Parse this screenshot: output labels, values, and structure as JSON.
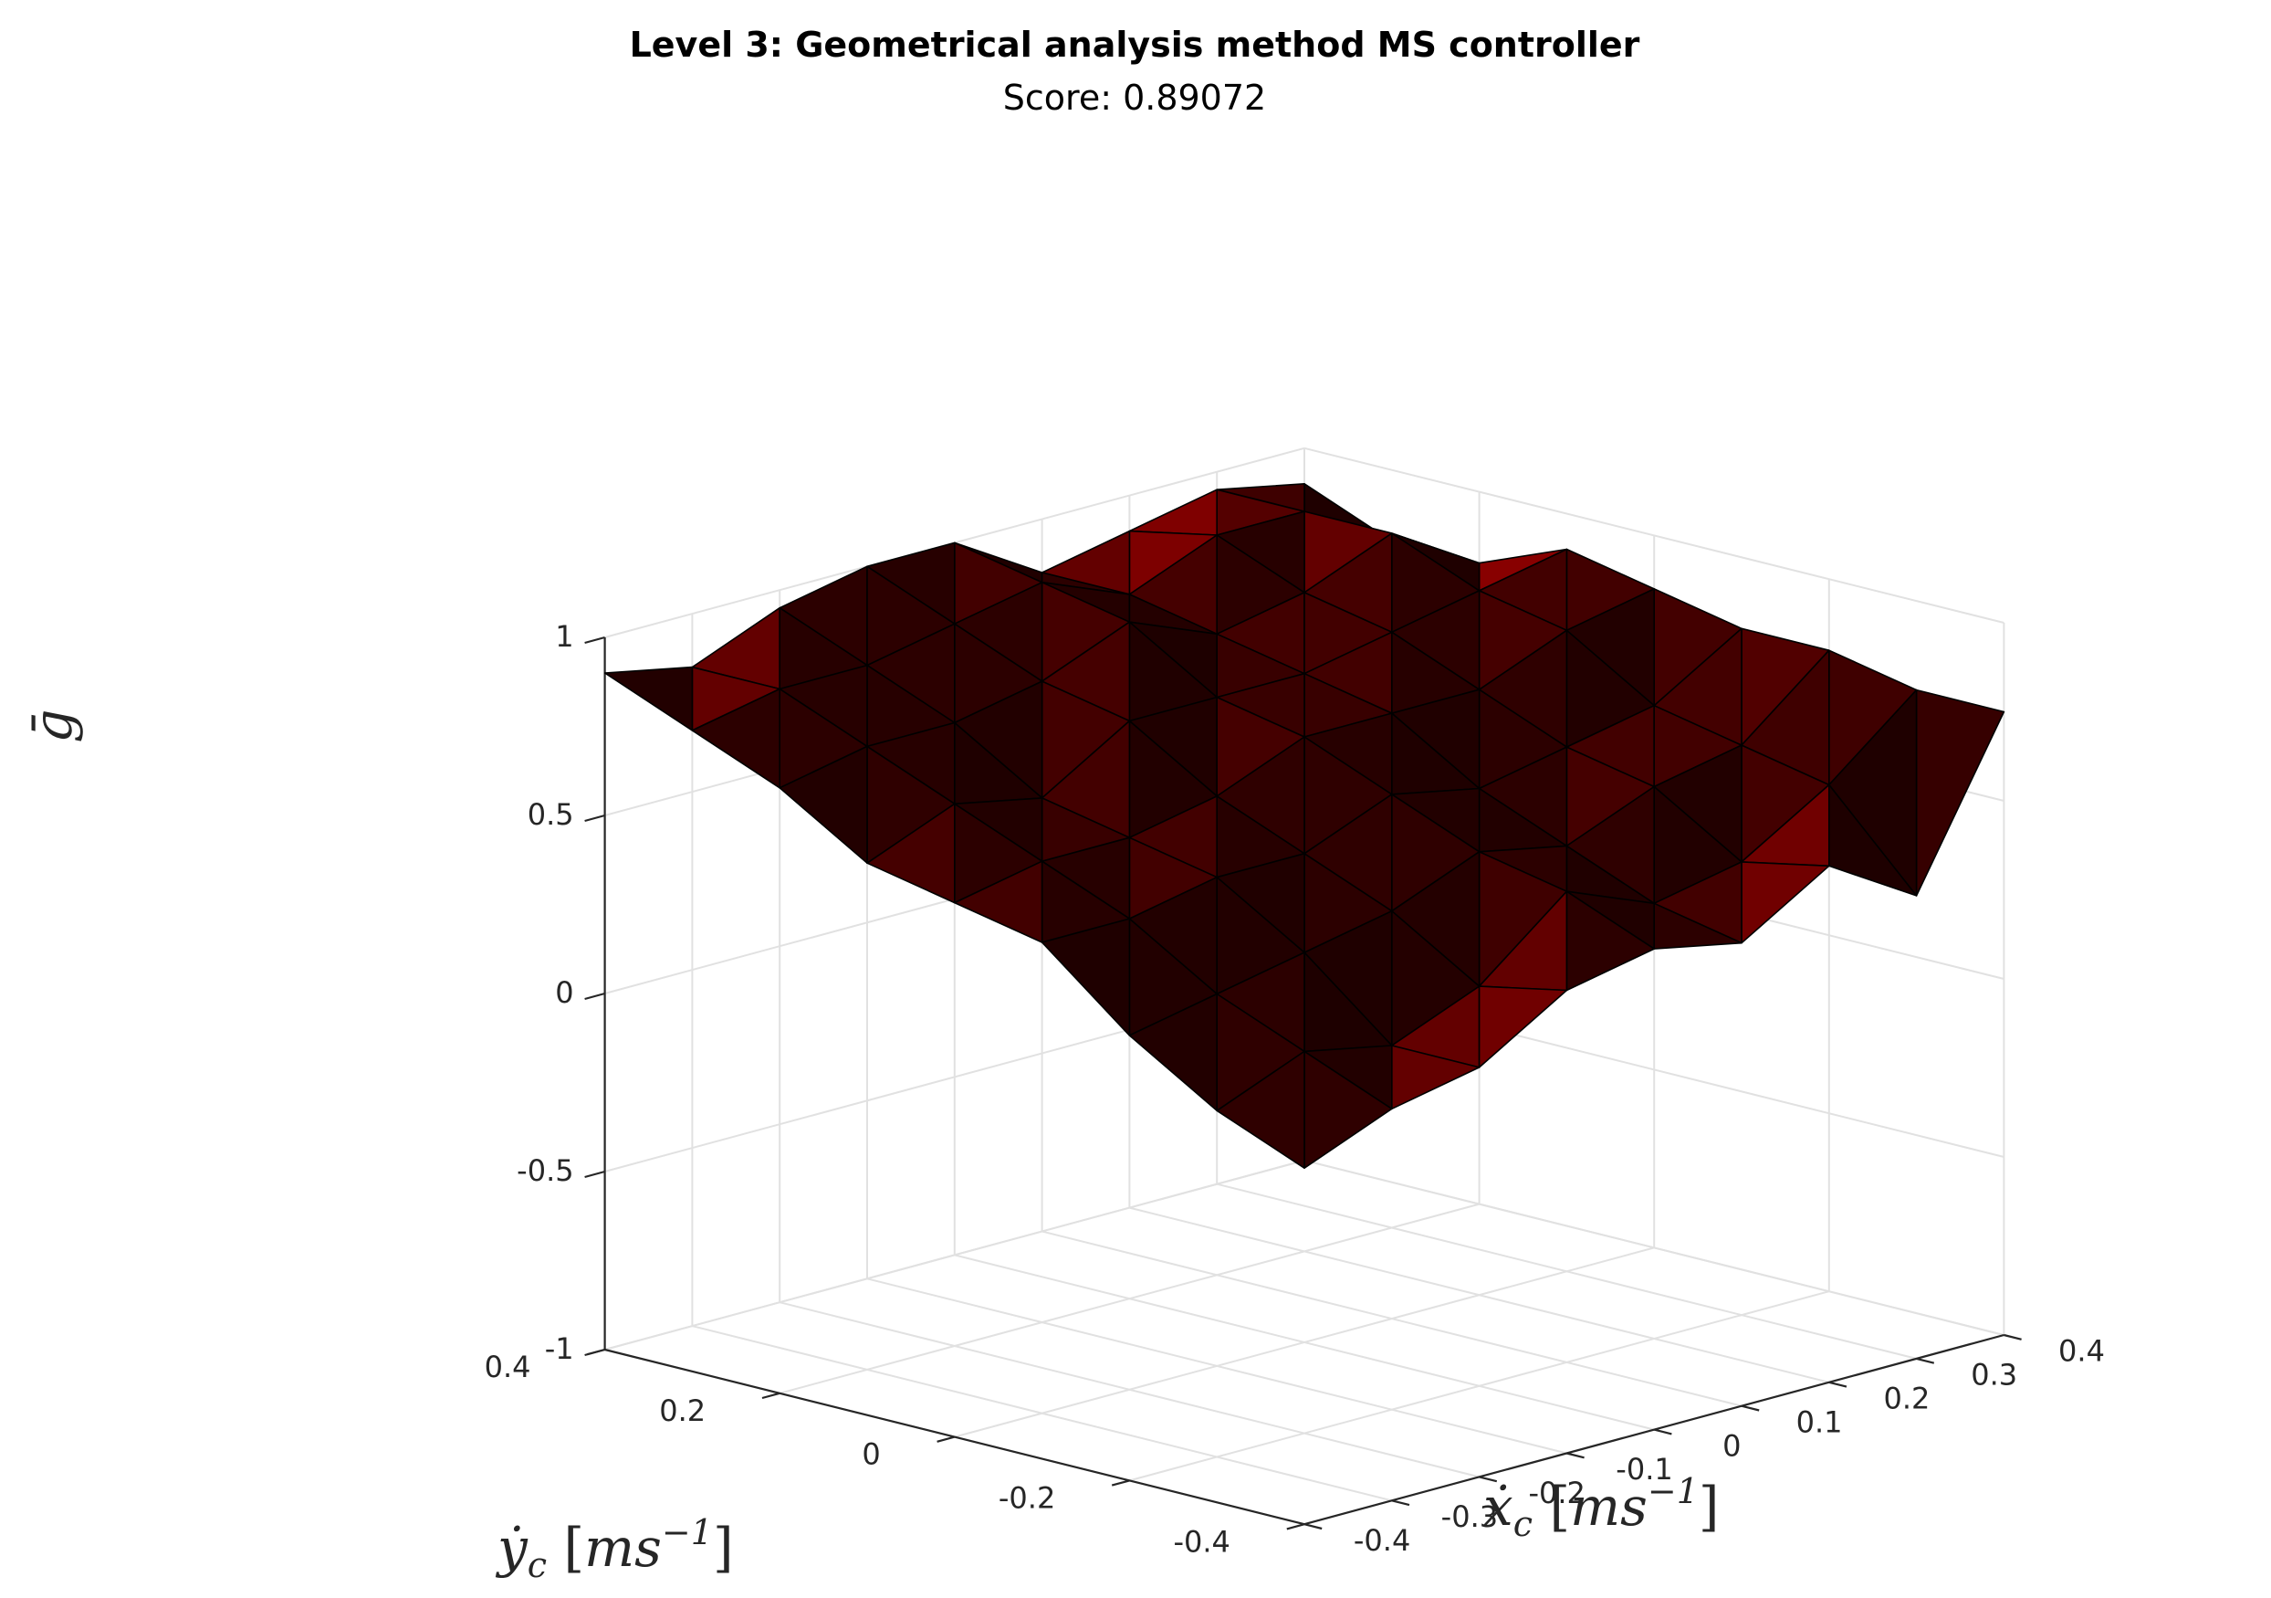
{
  "chart_data": {
    "type": "surface",
    "title": "Level 3: Geometrical analysis method MS controller",
    "subtitle": "Score: 0.89072",
    "xlabel": "ẋc [ms−1]",
    "ylabel": "ẏc [ms−1]",
    "zlabel": "ḡ",
    "xlim": [
      -0.4,
      0.4
    ],
    "ylim": [
      -0.4,
      0.4
    ],
    "zlim": [
      -1,
      1
    ],
    "x_ticks": [
      "-0.4",
      "-0.3",
      "-0.2",
      "-0.1",
      "0",
      "0.1",
      "0.2",
      "0.3",
      "0.4"
    ],
    "y_ticks": [
      "-0.4",
      "-0.2",
      "0",
      "0.2",
      "0.4"
    ],
    "z_ticks": [
      "-1",
      "-0.5",
      "0",
      "0.5",
      "1"
    ],
    "grid": true,
    "surface_color": "#8a0000",
    "x": [
      -0.4,
      -0.3,
      -0.2,
      -0.1,
      0,
      0.1,
      0.2,
      0.3,
      0.4
    ],
    "y": [
      -0.4,
      -0.3,
      -0.2,
      -0.1,
      0,
      0.1,
      0.2,
      0.3,
      0.4
    ],
    "z": [
      [
        0.0,
        0.1,
        0.15,
        0.3,
        0.35,
        0.3,
        0.45,
        0.3,
        0.75
      ],
      [
        0.1,
        0.2,
        0.15,
        0.25,
        0.45,
        0.35,
        0.4,
        0.55,
        0.75
      ],
      [
        0.25,
        0.3,
        0.35,
        0.4,
        0.5,
        0.45,
        0.55,
        0.6,
        0.8
      ],
      [
        0.45,
        0.45,
        0.5,
        0.5,
        0.6,
        0.55,
        0.6,
        0.65,
        0.8
      ],
      [
        0.5,
        0.55,
        0.55,
        0.6,
        0.7,
        0.7,
        0.7,
        0.8,
        0.85
      ],
      [
        0.55,
        0.65,
        0.6,
        0.75,
        0.75,
        0.75,
        0.8,
        0.85,
        0.9
      ],
      [
        0.7,
        0.75,
        0.75,
        0.8,
        0.9,
        0.8,
        0.85,
        0.95,
        0.8
      ],
      [
        0.8,
        0.85,
        0.85,
        0.9,
        0.95,
        0.85,
        0.95,
        0.95,
        0.8
      ],
      [
        0.9,
        0.85,
        0.95,
        1.0,
        1.0,
        0.85,
        0.9,
        0.95,
        0.9
      ]
    ]
  }
}
